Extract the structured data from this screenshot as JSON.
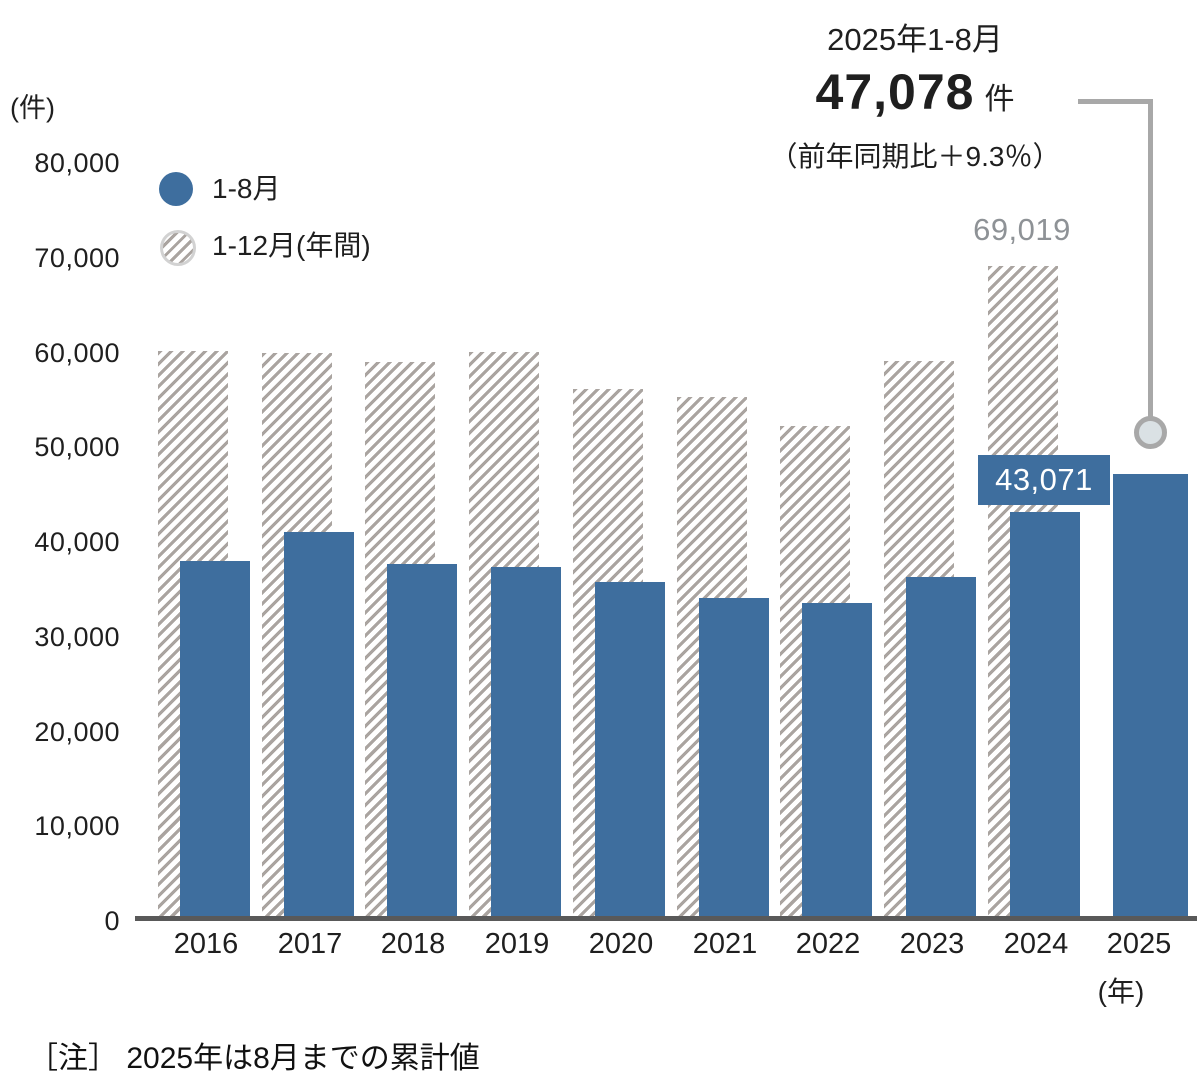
{
  "y_axis": {
    "unit": "(件)",
    "tick_labels": [
      "80,000",
      "70,000",
      "60,000",
      "50,000",
      "40,000",
      "30,000",
      "20,000",
      "10,000",
      "0"
    ]
  },
  "legend": {
    "items": [
      {
        "label": "1-8月",
        "swatch": "solid-blue-circle"
      },
      {
        "label": "1-12月(年間)",
        "swatch": "hatched-gray-circle"
      }
    ]
  },
  "annotation": {
    "period": "2025年1-8月",
    "value": "47,078",
    "unit": "件",
    "comparison": "（前年同期比＋9.3％）"
  },
  "bar_labels": {
    "annual_2024": "69,019",
    "jan_aug_2024": "43,071"
  },
  "x_axis": {
    "unit": "(年)"
  },
  "note": "［注］ 2025年は8月までの累計値",
  "colors": {
    "bar_blue": "#3e6e9e",
    "hatch_gray": "#aaa4a0",
    "axis_gray": "#595959",
    "connector_gray": "#a8a8a8",
    "gray_label": "#8e9296"
  },
  "chart_data": {
    "type": "bar",
    "title": "2025年1-8月 47,078件（前年同期比＋9.3％）",
    "categories": [
      "2016",
      "2017",
      "2018",
      "2019",
      "2020",
      "2021",
      "2022",
      "2023",
      "2024",
      "2025"
    ],
    "series": [
      {
        "name": "1-8月",
        "style": "solid-blue",
        "values": [
          37900,
          41000,
          37600,
          37300,
          35700,
          34000,
          33500,
          36200,
          43071,
          47078
        ]
      },
      {
        "name": "1-12月(年間)",
        "style": "hatched-gray",
        "values": [
          60100,
          59800,
          58900,
          59900,
          56000,
          55200,
          52100,
          59000,
          69019,
          null
        ]
      }
    ],
    "labeled_points": [
      {
        "category": "2024",
        "series": "1-12月(年間)",
        "label": "69,019"
      },
      {
        "category": "2024",
        "series": "1-8月",
        "label": "43,071"
      },
      {
        "category": "2025",
        "series": "1-8月",
        "label": "47,078"
      }
    ],
    "xlabel": "(年)",
    "ylabel": "(件)",
    "ylim": [
      0,
      80000
    ],
    "ytick_step": 10000,
    "grid": false,
    "legend_position": "upper-left",
    "note": "［注］ 2025年は8月までの累計値"
  }
}
